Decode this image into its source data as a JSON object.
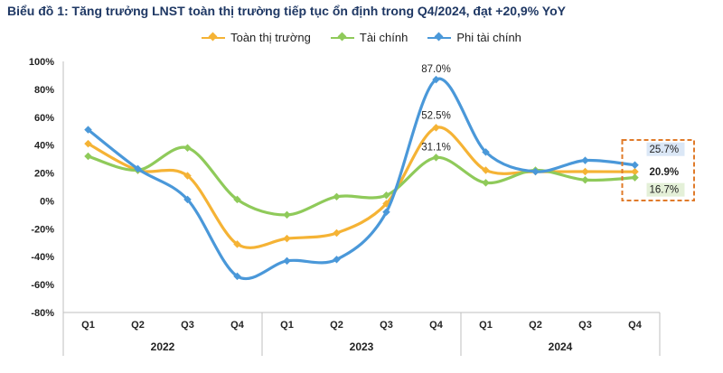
{
  "title": "Biểu đồ 1: Tăng trưởng LNST toàn thị trường tiếp tục ổn định trong Q4/2024, đạt +20,9% YoY",
  "chart_data": {
    "type": "line",
    "title": "Biểu đồ 1: Tăng trưởng LNST toàn thị trường tiếp tục ổn định trong Q4/2024, đạt +20,9% YoY",
    "categories": [
      "Q1",
      "Q2",
      "Q3",
      "Q4",
      "Q1",
      "Q2",
      "Q3",
      "Q4",
      "Q1",
      "Q2",
      "Q3",
      "Q4"
    ],
    "years": [
      {
        "label": "2022",
        "start": 0,
        "end": 3
      },
      {
        "label": "2023",
        "start": 4,
        "end": 7
      },
      {
        "label": "2024",
        "start": 8,
        "end": 11
      }
    ],
    "ylim": [
      -80,
      100
    ],
    "yticks": [
      -80,
      -60,
      -40,
      -20,
      0,
      20,
      40,
      60,
      80,
      100
    ],
    "ytick_labels": [
      "-80%",
      "-60%",
      "-40%",
      "-20%",
      "0%",
      "20%",
      "40%",
      "60%",
      "80%",
      "100%"
    ],
    "legend_position": "top-center",
    "series": [
      {
        "name": "Toàn thị trường",
        "color": "#f5b335",
        "values": [
          41,
          22,
          18,
          -31,
          -27,
          -23,
          -2,
          52.5,
          22,
          21,
          21,
          20.9
        ]
      },
      {
        "name": "Tài chính",
        "color": "#8fca5a",
        "values": [
          32,
          22,
          38,
          1,
          -10,
          3,
          4,
          31.1,
          13,
          22,
          15,
          16.7
        ]
      },
      {
        "name": "Phi tài chính",
        "color": "#4a98d9",
        "values": [
          51,
          23,
          1,
          -54,
          -43,
          -42,
          -8,
          87.0,
          35,
          21,
          29,
          25.7
        ]
      }
    ],
    "annotations": [
      {
        "text": "87.0%",
        "series": 2,
        "index": 7
      },
      {
        "text": "52.5%",
        "series": 0,
        "index": 7
      },
      {
        "text": "31.1%",
        "series": 1,
        "index": 7
      },
      {
        "text": "25.7%",
        "series": 2,
        "index": 11
      },
      {
        "text": "20.9%",
        "series": 0,
        "index": 11
      },
      {
        "text": "16.7%",
        "series": 1,
        "index": 11
      }
    ]
  }
}
